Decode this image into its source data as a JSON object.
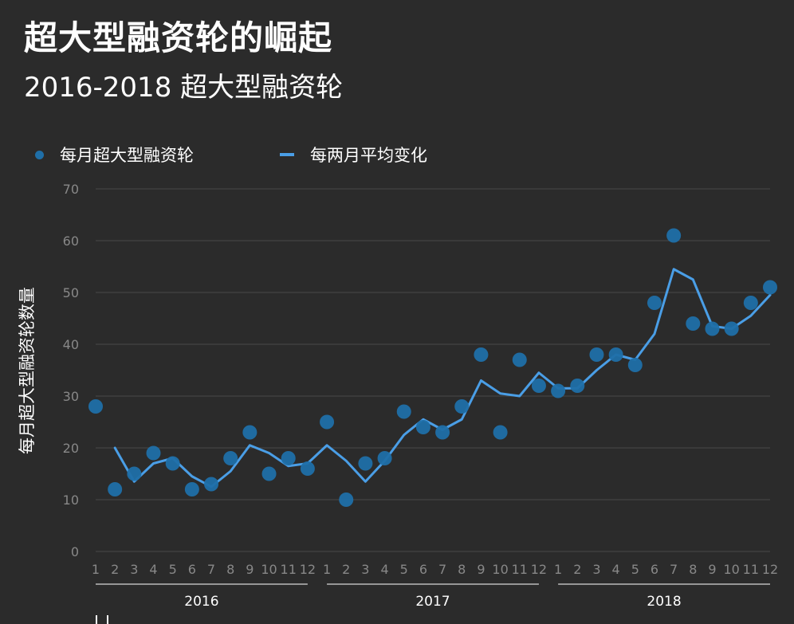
{
  "header": {
    "title": "超大型融资轮的崛起",
    "subtitle": "2016-2018 超大型融资轮"
  },
  "colors": {
    "background": "#2b2b2b",
    "scatter": "#1f6fa8",
    "line": "#4a9ee6",
    "grid": "#4a4a4a",
    "tick": "#888888"
  },
  "chart_data": {
    "type": "line",
    "title": "",
    "ylabel": "每月超大型融资轮数量",
    "xlabel": "",
    "ylim": [
      0,
      70
    ],
    "yticks": [
      0,
      10,
      20,
      30,
      40,
      50,
      60,
      70
    ],
    "grid": true,
    "legend_position": "top-left",
    "months": [
      "1",
      "2",
      "3",
      "4",
      "5",
      "6",
      "7",
      "8",
      "9",
      "10",
      "11",
      "12",
      "1",
      "2",
      "3",
      "4",
      "5",
      "6",
      "7",
      "8",
      "9",
      "10",
      "11",
      "12",
      "1",
      "2",
      "3",
      "4",
      "5",
      "6",
      "7",
      "8",
      "9",
      "10",
      "11",
      "12"
    ],
    "years": [
      {
        "label": "2016",
        "start": 0,
        "end": 11
      },
      {
        "label": "2017",
        "start": 12,
        "end": 23
      },
      {
        "label": "2018",
        "start": 24,
        "end": 35
      }
    ],
    "series": [
      {
        "name": "每月超大型融资轮",
        "type": "scatter",
        "values": [
          28,
          12,
          15,
          19,
          17,
          12,
          13,
          18,
          23,
          15,
          18,
          16,
          25,
          10,
          17,
          18,
          27,
          24,
          23,
          28,
          38,
          23,
          37,
          32,
          31,
          32,
          38,
          38,
          36,
          48,
          61,
          44,
          43,
          43,
          48,
          51
        ]
      },
      {
        "name": "每两月平均变化",
        "type": "line",
        "values": [
          null,
          20,
          13.5,
          17,
          18,
          14.5,
          12.5,
          15.5,
          20.5,
          19,
          16.5,
          17,
          20.5,
          17.5,
          13.5,
          17.5,
          22.5,
          25.5,
          23.5,
          25.5,
          33,
          30.5,
          30,
          34.5,
          31.5,
          31.5,
          35,
          38,
          37,
          42,
          54.5,
          52.5,
          43.5,
          43,
          45.5,
          49.5
        ]
      }
    ]
  }
}
